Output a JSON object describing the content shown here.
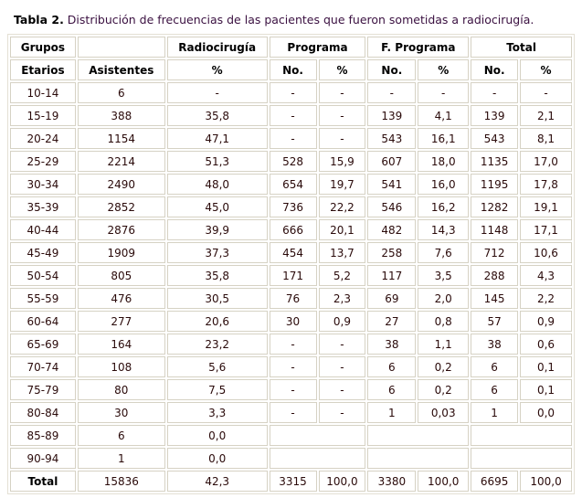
{
  "caption": {
    "label": "Tabla 2.",
    "text": " Distribución de frecuencias de las pacientes que fueron sometidas a radiocirugía."
  },
  "header1": [
    "Grupos",
    "",
    "Radiocirugía",
    "Programa",
    "F. Programa",
    "Total"
  ],
  "header2": [
    "Etarios",
    "Asistentes",
    "%",
    "No.",
    "%",
    "No.",
    "%",
    "No.",
    "%"
  ],
  "rows": [
    [
      "10-14",
      "6",
      "-",
      "-",
      "-",
      "-",
      "-",
      "-",
      "-"
    ],
    [
      "15-19",
      "388",
      "35,8",
      "-",
      "-",
      "139",
      "4,1",
      "139",
      "2,1"
    ],
    [
      "20-24",
      "1154",
      "47,1",
      "-",
      "-",
      "543",
      "16,1",
      "543",
      "8,1"
    ],
    [
      "25-29",
      "2214",
      "51,3",
      "528",
      "15,9",
      "607",
      "18,0",
      "1135",
      "17,0"
    ],
    [
      "30-34",
      "2490",
      "48,0",
      "654",
      "19,7",
      "541",
      "16,0",
      "1195",
      "17,8"
    ],
    [
      "35-39",
      "2852",
      "45,0",
      "736",
      "22,2",
      "546",
      "16,2",
      "1282",
      "19,1"
    ],
    [
      "40-44",
      "2876",
      "39,9",
      "666",
      "20,1",
      "482",
      "14,3",
      "1148",
      "17,1"
    ],
    [
      "45-49",
      "1909",
      "37,3",
      "454",
      "13,7",
      "258",
      "7,6",
      "712",
      "10,6"
    ],
    [
      "50-54",
      "805",
      "35,8",
      "171",
      "5,2",
      "117",
      "3,5",
      "288",
      "4,3"
    ],
    [
      "55-59",
      "476",
      "30,5",
      "76",
      "2,3",
      "69",
      "2,0",
      "145",
      "2,2"
    ],
    [
      "60-64",
      "277",
      "20,6",
      "30",
      "0,9",
      "27",
      "0,8",
      "57",
      "0,9"
    ],
    [
      "65-69",
      "164",
      "23,2",
      "-",
      "-",
      "38",
      "1,1",
      "38",
      "0,6"
    ],
    [
      "70-74",
      "108",
      "5,6",
      "-",
      "-",
      "6",
      "0,2",
      "6",
      "0,1"
    ],
    [
      "75-79",
      "80",
      "7,5",
      "-",
      "-",
      "6",
      "0,2",
      "6",
      "0,1"
    ],
    [
      "80-84",
      "30",
      "3,3",
      "-",
      "-",
      "1",
      "0,03",
      "1",
      "0,0"
    ]
  ],
  "partial_rows": [
    [
      "85-89",
      "6",
      "0,0"
    ],
    [
      "90-94",
      "1",
      "0,0"
    ]
  ],
  "total_row": [
    "Total",
    "15836",
    "42,3",
    "3315",
    "100,0",
    "3380",
    "100,0",
    "6695",
    "100,0"
  ]
}
